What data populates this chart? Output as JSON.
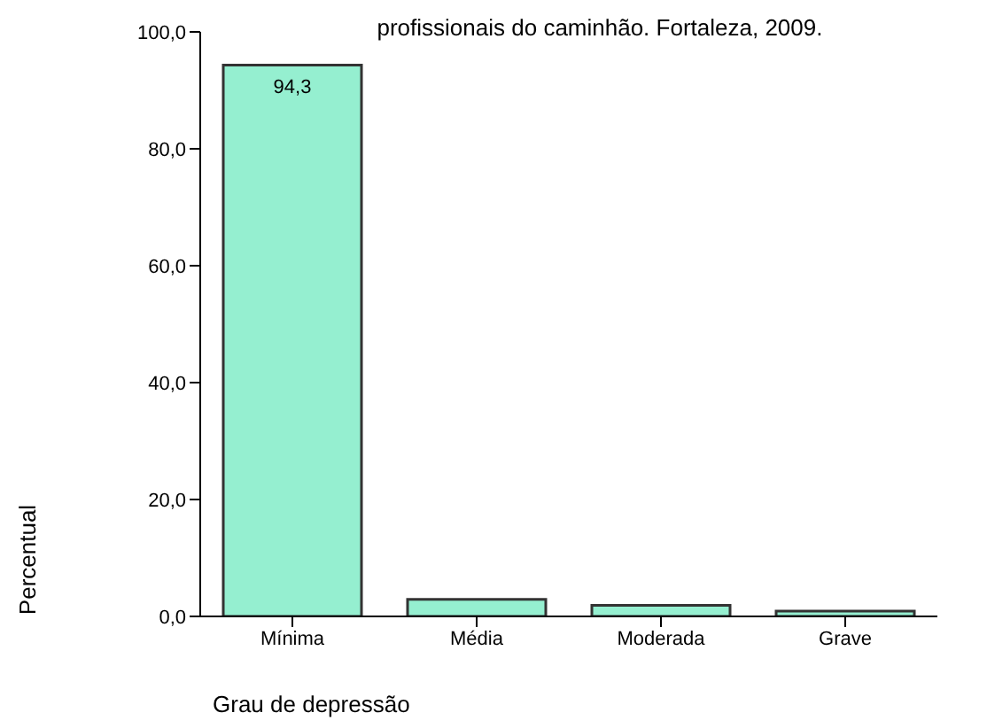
{
  "chart_data": {
    "type": "bar",
    "title": "profissionais do caminhão. Fortaleza, 2009.",
    "xlabel": "Grau de depressão",
    "ylabel": "Percentual",
    "categories": [
      "Mínima",
      "Média",
      "Moderada",
      "Grave"
    ],
    "values": [
      94.3,
      2.9,
      1.9,
      0.9
    ],
    "color": "#95efd0",
    "value_labels": [
      "94,3",
      null,
      null,
      null
    ],
    "ylim": [
      0,
      100
    ],
    "yticks": [
      {
        "value": 0,
        "label": "0,0"
      },
      {
        "value": 20,
        "label": "20,0"
      },
      {
        "value": 40,
        "label": "40,0"
      },
      {
        "value": 60,
        "label": "60,0"
      },
      {
        "value": 80,
        "label": "80,0"
      },
      {
        "value": 100,
        "label": "100,0"
      }
    ],
    "grid": false,
    "legend": false
  }
}
